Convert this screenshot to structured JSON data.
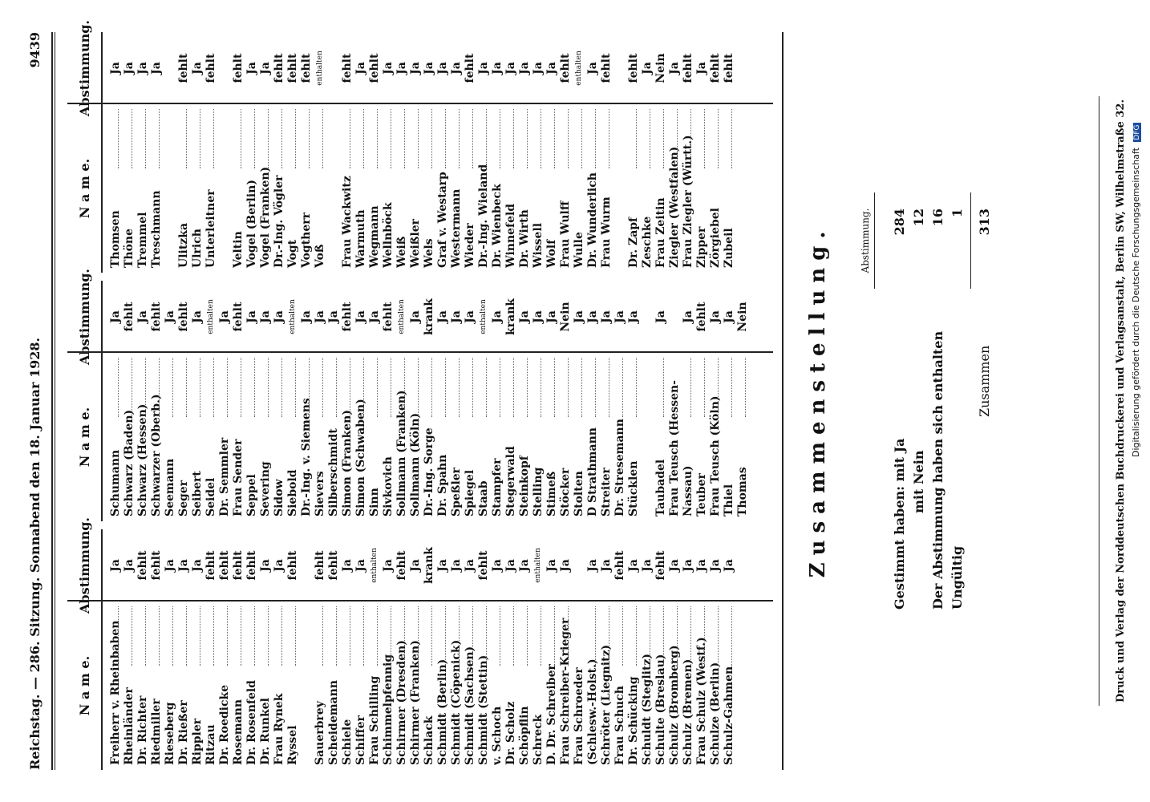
{
  "header": {
    "left": "Reichstag. — 286. Sitzung. Sonnabend den 18. Januar 1928.",
    "page": "9439"
  },
  "colhead": {
    "name": "N a m e.",
    "vote": "Abstimmung."
  },
  "columns": [
    {
      "rows": [
        [
          "Freiherr v. Rheinbaben",
          "Ja"
        ],
        [
          "Rheinländer",
          "Ja"
        ],
        [
          "Dr. Richter",
          "fehlt"
        ],
        [
          "Riedmiller",
          "fehlt"
        ],
        [
          "Rieseberg",
          "Ja"
        ],
        [
          "Dr. Rießer",
          "Ja"
        ],
        [
          "Rippler",
          "Ja"
        ],
        [
          "Ritzau",
          "fehlt"
        ],
        [
          "Dr. Roedicke",
          "fehlt"
        ],
        [
          "Rosemann",
          "fehlt"
        ],
        [
          "Dr. Rosenfeld",
          "fehlt"
        ],
        [
          "Dr. Runkel",
          "Ja"
        ],
        [
          "Frau Rynek",
          "Ja"
        ],
        [
          "Ryssel",
          "fehlt"
        ],
        [
          "",
          ""
        ],
        [
          "Sauerbrey",
          "fehlt"
        ],
        [
          "Scheidemann",
          "fehlt"
        ],
        [
          "Schiele",
          "Ja"
        ],
        [
          "Schiffer",
          "Ja"
        ],
        [
          "Frau Schilling",
          "enthalten"
        ],
        [
          "Schimmelpfennig",
          "Ja"
        ],
        [
          "Schirmer (Dresden)",
          "fehlt"
        ],
        [
          "Schirmer (Franken)",
          "Ja"
        ],
        [
          "Schlack",
          "krank"
        ],
        [
          "Schmidt (Berlin)",
          "Ja"
        ],
        [
          "Schmidt (Cöpenick)",
          "Ja"
        ],
        [
          "Schmidt (Sachsen)",
          "Ja"
        ],
        [
          "Schmidt (Stettin)",
          "fehlt"
        ],
        [
          "v. Schoch",
          "Ja"
        ],
        [
          "Dr. Scholz",
          "Ja"
        ],
        [
          "Schöpflin",
          "Ja"
        ],
        [
          "Schreck",
          "enthalten"
        ],
        [
          "D. Dr. Schreiber",
          "Ja"
        ],
        [
          "Frau Schreiber-Krieger",
          "Ja"
        ],
        [
          "Frau Schroeder",
          ""
        ],
        [
          "(Schlesw.-Holst.)",
          "Ja"
        ],
        [
          "Schröter (Liegnitz)",
          "Ja"
        ],
        [
          "Frau Schuch",
          "fehlt"
        ],
        [
          "Dr. Schücking",
          "Ja"
        ],
        [
          "Schuldt (Steglitz)",
          "Ja"
        ],
        [
          "Schulte (Breslau)",
          "fehlt"
        ],
        [
          "Schulz (Bromberg)",
          "Ja"
        ],
        [
          "Schulz (Bremen)",
          "Ja"
        ],
        [
          "Frau Schulz (Westf.)",
          "Ja"
        ],
        [
          "Schulze (Berlin)",
          "Ja"
        ],
        [
          "Schulz-Gahmen",
          "Ja"
        ]
      ]
    },
    {
      "rows": [
        [
          "Schumann",
          "Ja"
        ],
        [
          "Schwarz (Baden)",
          "fehlt"
        ],
        [
          "Schwarz (Hessen)",
          "Ja"
        ],
        [
          "Schwarzer (Oberb.)",
          "fehlt"
        ],
        [
          "Seemann",
          "Ja"
        ],
        [
          "Seger",
          "fehlt"
        ],
        [
          "Seibert",
          "Ja"
        ],
        [
          "Seidel",
          "enthalten"
        ],
        [
          "Dr. Semmler",
          "Ja"
        ],
        [
          "Frau Sender",
          "fehlt"
        ],
        [
          "Seppel",
          "Ja"
        ],
        [
          "Severing",
          "Ja"
        ],
        [
          "Sidow",
          "Ja"
        ],
        [
          "Siebold",
          "enthalten"
        ],
        [
          "Dr.-Ing. v. Siemens",
          "Ja"
        ],
        [
          "Sievers",
          "Ja"
        ],
        [
          "Silberschmidt",
          "Ja"
        ],
        [
          "Simon (Franken)",
          "fehlt"
        ],
        [
          "Simon (Schwaben)",
          "Ja"
        ],
        [
          "Sinn",
          "Ja"
        ],
        [
          "Sivkovich",
          "fehlt"
        ],
        [
          "Sollmann (Franken)",
          "enthalten"
        ],
        [
          "Sollmann (Köln)",
          "Ja"
        ],
        [
          "Dr.-Ing. Sorge",
          "krank"
        ],
        [
          "Dr. Spahn",
          "Ja"
        ],
        [
          "Speßler",
          "Ja"
        ],
        [
          "Spiegel",
          "Ja"
        ],
        [
          "Staab",
          "enthalten"
        ],
        [
          "Stampfer",
          "Ja"
        ],
        [
          "Stegerwald",
          "krank"
        ],
        [
          "Steinkopf",
          "Ja"
        ],
        [
          "Stelling",
          "Ja"
        ],
        [
          "Stimeß",
          "Ja"
        ],
        [
          "Stöcker",
          "Nein"
        ],
        [
          "Stolten",
          "Ja"
        ],
        [
          "D Strathmann",
          "Ja"
        ],
        [
          "Streiter",
          "Ja"
        ],
        [
          "Dr. Stresemann",
          "Ja"
        ],
        [
          "Stücklen",
          "Ja"
        ],
        [
          "",
          ""
        ],
        [
          "Taubadel",
          "Ja"
        ],
        [
          "Frau Teusch (Hessen-",
          ""
        ],
        [
          "Nassau)",
          "Ja"
        ],
        [
          "Teuber",
          "fehlt"
        ],
        [
          "Frau Teusch (Köln)",
          "Ja"
        ],
        [
          "Thiel",
          "Ja"
        ],
        [
          "Thomas",
          "Nein"
        ]
      ]
    },
    {
      "rows": [
        [
          "Thomsen",
          "Ja"
        ],
        [
          "Thöne",
          "Ja"
        ],
        [
          "Tremmel",
          "Ja"
        ],
        [
          "Treschmann",
          "Ja"
        ],
        [
          "",
          ""
        ],
        [
          "Ulitzka",
          "fehlt"
        ],
        [
          "Ulrich",
          "Ja"
        ],
        [
          "Unterleitner",
          "fehlt"
        ],
        [
          "",
          ""
        ],
        [
          "Veltin",
          "fehlt"
        ],
        [
          "Vogel (Berlin)",
          "Ja"
        ],
        [
          "Vogel (Franken)",
          "Ja"
        ],
        [
          "Dr.-Ing. Vögler",
          "fehlt"
        ],
        [
          "Vogt",
          "fehlt"
        ],
        [
          "Vogtherr",
          "fehlt"
        ],
        [
          "Voß",
          "enthalten"
        ],
        [
          "",
          ""
        ],
        [
          "Frau Wackwitz",
          "fehlt"
        ],
        [
          "Warmuth",
          "Ja"
        ],
        [
          "Wegmann",
          "fehlt"
        ],
        [
          "Wellnböck",
          "Ja"
        ],
        [
          "Weiß",
          "Ja"
        ],
        [
          "Weißler",
          "Ja"
        ],
        [
          "Wels",
          "Ja"
        ],
        [
          "Graf v. Westarp",
          "Ja"
        ],
        [
          "Westermann",
          "Ja"
        ],
        [
          "Wieder",
          "fehlt"
        ],
        [
          "Dr.-Ing. Wieland",
          "Ja"
        ],
        [
          "Dr. Wienbeck",
          "Ja"
        ],
        [
          "Winnefeld",
          "Ja"
        ],
        [
          "Dr. Wirth",
          "Ja"
        ],
        [
          "Wissell",
          "Ja"
        ],
        [
          "Wolf",
          "Ja"
        ],
        [
          "Frau Wulff",
          "fehlt"
        ],
        [
          "Wulle",
          "enthalten"
        ],
        [
          "Dr. Wunderlich",
          "Ja"
        ],
        [
          "Frau Wurm",
          "fehlt"
        ],
        [
          "",
          ""
        ],
        [
          "Dr. Zapf",
          "fehlt"
        ],
        [
          "Zeschke",
          "Ja"
        ],
        [
          "Frau Zeitin",
          "Nein"
        ],
        [
          "Ziegler (Westfalen)",
          "Ja"
        ],
        [
          "Frau Ziegler (Württ.)",
          "fehlt"
        ],
        [
          "Zipper",
          "Ja"
        ],
        [
          "Zörgiebel",
          "fehlt"
        ],
        [
          "Zubeil",
          "fehlt"
        ]
      ]
    }
  ],
  "summary": {
    "title": "Zusammenstellung.",
    "column_label": "Abstimmung.",
    "lines": [
      {
        "label": "Gestimmt haben: mit Ja",
        "value": "284"
      },
      {
        "label": "mit Nein",
        "value": "12"
      },
      {
        "label": "Der Abstimmung haben sich enthalten",
        "value": "16"
      },
      {
        "label": "Ungültig",
        "value": "1"
      }
    ],
    "total_label": "Zusammen",
    "total": "313"
  },
  "footer": "Druck und Verlag der Norddeutschen Buchdruckerei und Verlagsanstalt, Berlin SW, Wilhelmstraße 32.",
  "side_note": "Digitalisierung gefördert durch die Deutsche Forschungsgemeinschaft",
  "dfg_logo": "DFG"
}
